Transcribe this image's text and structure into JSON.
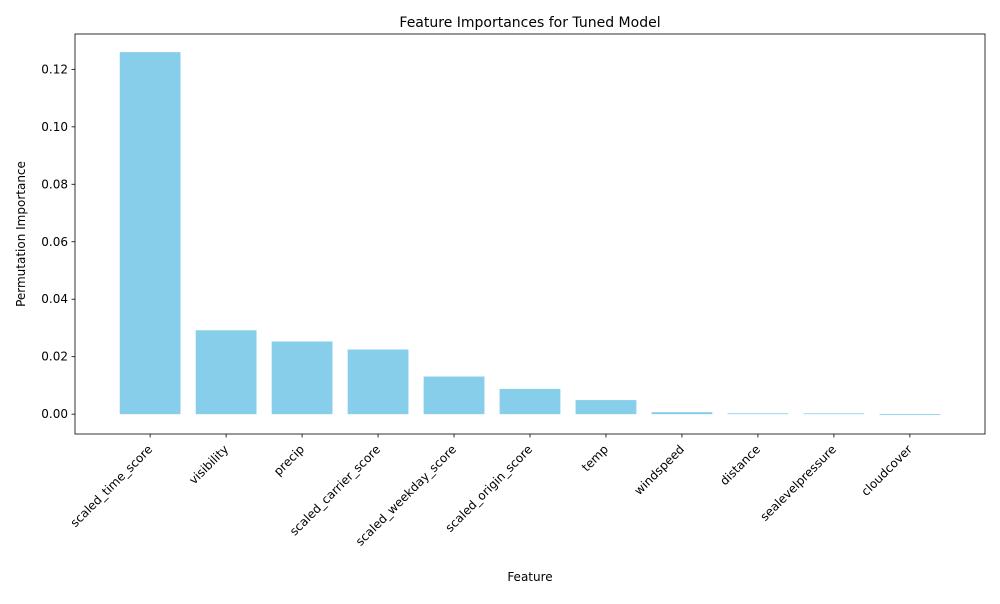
{
  "chart_data": {
    "type": "bar",
    "title": "Feature Importances for Tuned Model",
    "xlabel": "Feature",
    "ylabel": "Permutation Importance",
    "categories": [
      "scaled_time_score",
      "visibility",
      "precip",
      "scaled_carrier_score",
      "scaled_weekday_score",
      "scaled_origin_score",
      "temp",
      "windspeed",
      "distance",
      "sealevelpressure",
      "cloudcover"
    ],
    "values": [
      0.126,
      0.0292,
      0.0253,
      0.0225,
      0.0131,
      0.0088,
      0.0049,
      0.0007,
      0.0003,
      0.0,
      -0.0003
    ],
    "ylim": [
      -0.0069,
      0.1323
    ],
    "yticks": [
      0.0,
      0.02,
      0.04,
      0.06,
      0.08,
      0.1,
      0.12
    ],
    "ytick_labels": [
      "0.00",
      "0.02",
      "0.04",
      "0.06",
      "0.08",
      "0.10",
      "0.12"
    ],
    "bar_color": "#87ceeb",
    "grid": false,
    "legend": "none",
    "xtick_rotation_deg": 45
  }
}
